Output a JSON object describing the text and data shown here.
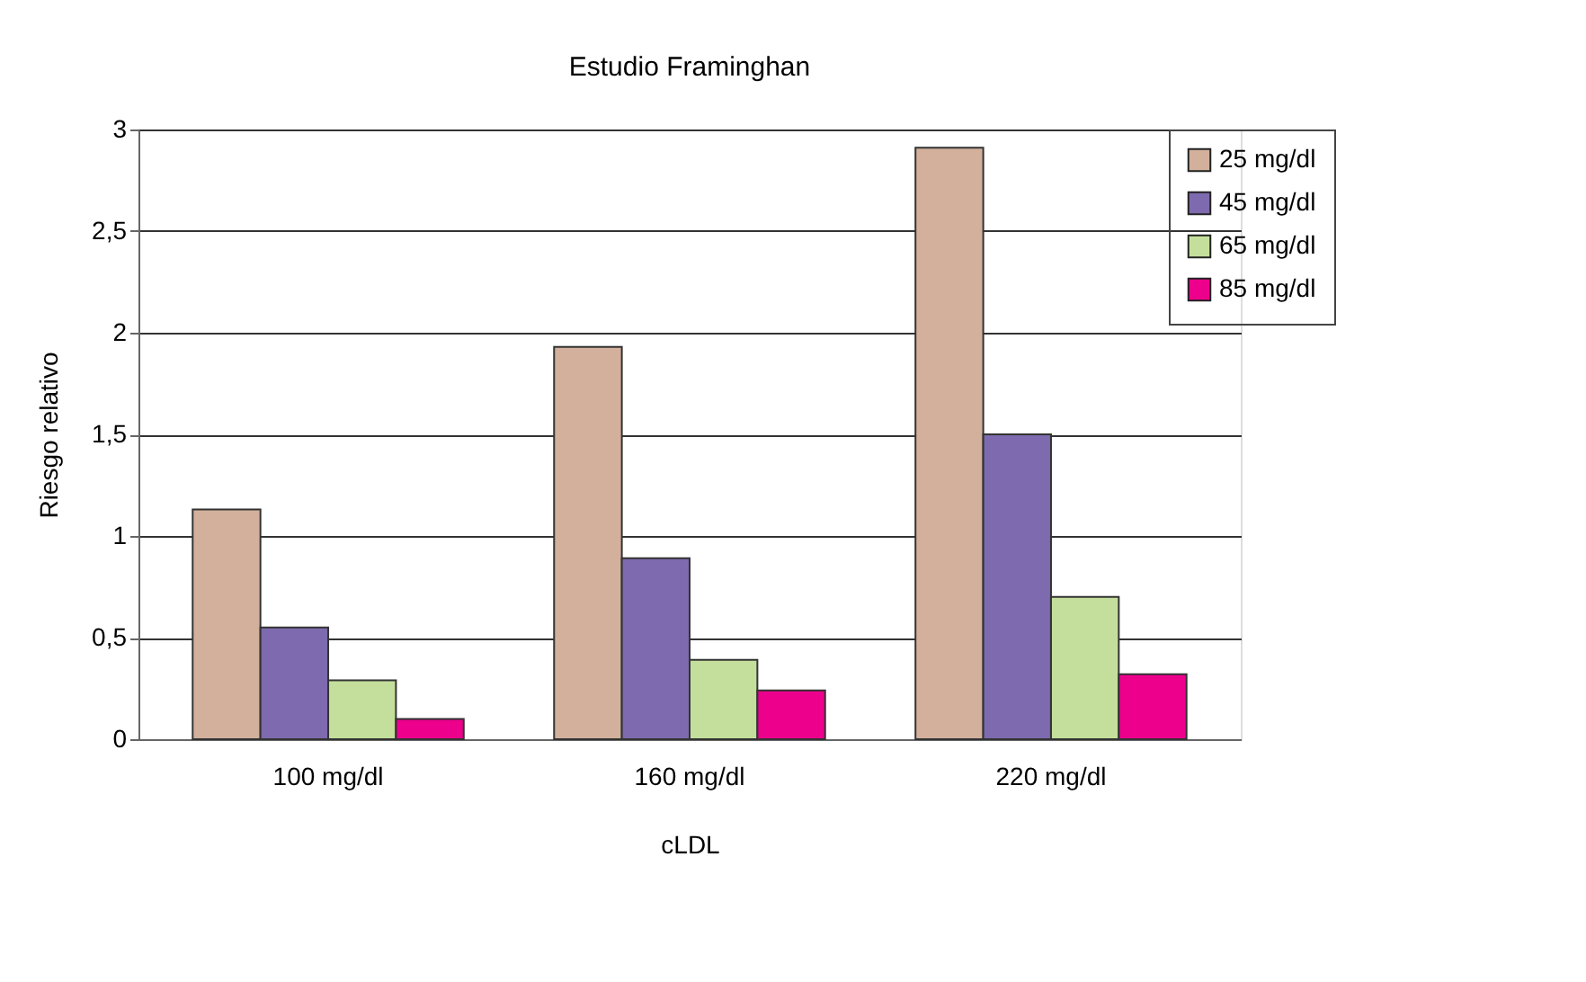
{
  "chart_data": {
    "type": "bar",
    "title": "Estudio Framinghan",
    "xlabel": "cLDL",
    "ylabel": "Riesgo relativo",
    "categories": [
      "100 mg/dl",
      "160 mg/dl",
      "220 mg/dl"
    ],
    "series": [
      {
        "name": "25 mg/dl",
        "color": "#d2b09c",
        "values": [
          1.13,
          1.93,
          2.91
        ]
      },
      {
        "name": "45 mg/dl",
        "color": "#7e6aae",
        "values": [
          0.55,
          0.89,
          1.5
        ]
      },
      {
        "name": "65 mg/dl",
        "color": "#c4df9b",
        "values": [
          0.29,
          0.39,
          0.7
        ]
      },
      {
        "name": "85 mg/dl",
        "color": "#ec008c",
        "values": [
          0.1,
          0.24,
          0.32
        ]
      }
    ],
    "ylim": [
      0,
      3
    ],
    "yticks": [
      {
        "value": 0,
        "label": "0"
      },
      {
        "value": 0.5,
        "label": "0,5"
      },
      {
        "value": 1,
        "label": "1"
      },
      {
        "value": 1.5,
        "label": "1,5"
      },
      {
        "value": 2,
        "label": "2"
      },
      {
        "value": 2.5,
        "label": "2,5"
      },
      {
        "value": 3,
        "label": "3"
      }
    ],
    "grid": "y",
    "legend": "right"
  }
}
